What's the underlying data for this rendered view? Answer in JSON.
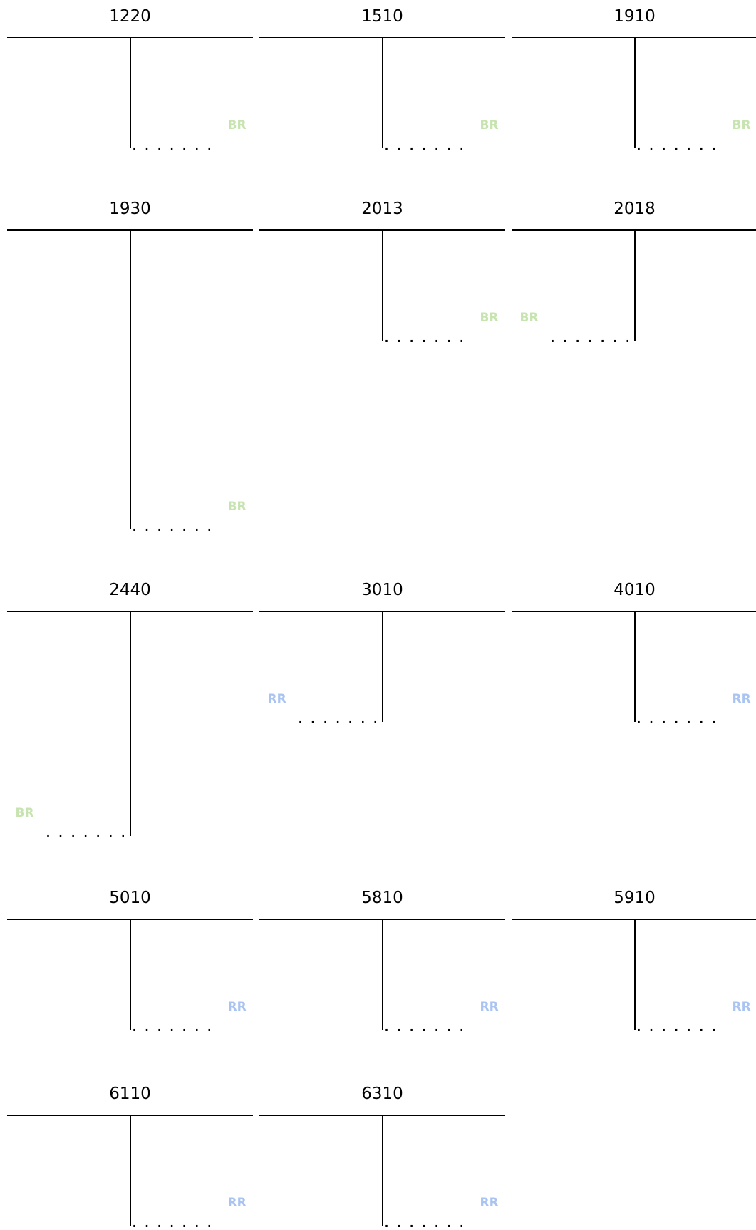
{
  "accounts": [
    {
      "number": "1220",
      "tag": "BR",
      "tag_type": "br",
      "side": "right",
      "depth": "short"
    },
    {
      "number": "1510",
      "tag": "BR",
      "tag_type": "br",
      "side": "right",
      "depth": "short"
    },
    {
      "number": "1910",
      "tag": "BR",
      "tag_type": "br",
      "side": "right",
      "depth": "short"
    },
    {
      "number": "1930",
      "tag": "BR",
      "tag_type": "br",
      "side": "right",
      "depth": "long"
    },
    {
      "number": "2013",
      "tag": "BR",
      "tag_type": "br",
      "side": "right",
      "depth": "short"
    },
    {
      "number": "2018",
      "tag": "BR",
      "tag_type": "br",
      "side": "left",
      "depth": "short"
    },
    {
      "number": "2440",
      "tag": "BR",
      "tag_type": "br",
      "side": "left",
      "depth": "medium"
    },
    {
      "number": "3010",
      "tag": "RR",
      "tag_type": "rr",
      "side": "left",
      "depth": "short"
    },
    {
      "number": "4010",
      "tag": "RR",
      "tag_type": "rr",
      "side": "right",
      "depth": "short"
    },
    {
      "number": "5010",
      "tag": "RR",
      "tag_type": "rr",
      "side": "right",
      "depth": "short"
    },
    {
      "number": "5810",
      "tag": "RR",
      "tag_type": "rr",
      "side": "right",
      "depth": "short"
    },
    {
      "number": "5910",
      "tag": "RR",
      "tag_type": "rr",
      "side": "right",
      "depth": "short"
    },
    {
      "number": "6110",
      "tag": "RR",
      "tag_type": "rr",
      "side": "right",
      "depth": "short"
    },
    {
      "number": "6310",
      "tag": "RR",
      "tag_type": "rr",
      "side": "right",
      "depth": "short"
    }
  ],
  "dots": "........",
  "colors": {
    "br": "#c7e4b0",
    "rr": "#a9c4f3",
    "line": "#000000"
  }
}
